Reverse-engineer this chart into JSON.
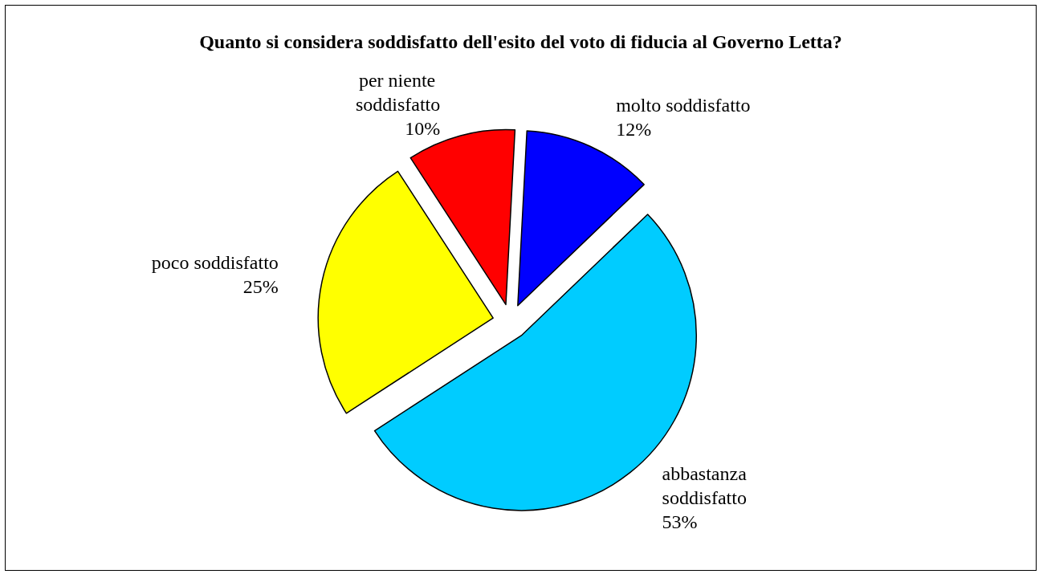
{
  "chart_data": {
    "type": "pie",
    "title": "Quanto si considera soddisfatto dell'esito del voto di fiducia al Governo Letta?",
    "categories": [
      "molto soddisfatto",
      "abbastanza soddisfatto",
      "poco soddisfatto",
      "per niente soddisfatto"
    ],
    "values": [
      12,
      53,
      25,
      10
    ],
    "colors": [
      "#0000ff",
      "#00ccff",
      "#ffff00",
      "#ff0000"
    ],
    "value_labels": [
      "12%",
      "53%",
      "25%",
      "10%"
    ],
    "legend": false
  }
}
